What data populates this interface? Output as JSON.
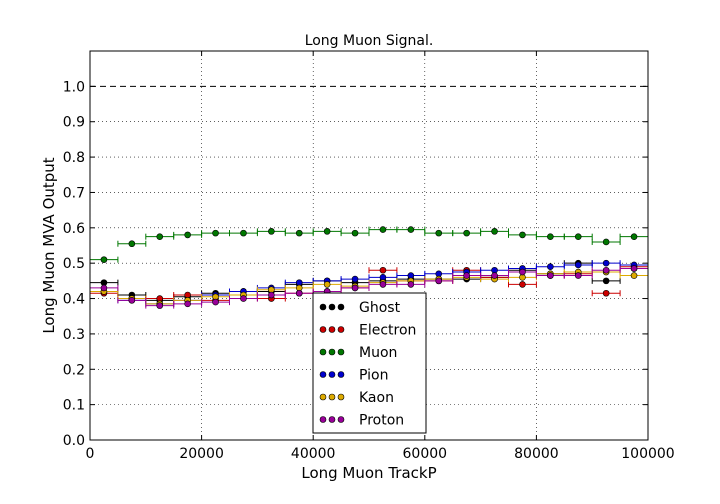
{
  "chart_data": {
    "type": "scatter",
    "title": "Long Muon Signal.",
    "xlabel": "Long Muon TrackP",
    "ylabel": "Long Muon MVA Output",
    "xlim": [
      0,
      100000
    ],
    "ylim": [
      0,
      1.1
    ],
    "xticks": [
      0,
      20000,
      40000,
      60000,
      80000,
      100000
    ],
    "xtick_labels": [
      "0",
      "20000",
      "40000",
      "60000",
      "80000",
      "100000"
    ],
    "yticks": [
      0,
      0.1,
      0.2,
      0.3,
      0.4,
      0.5,
      0.6,
      0.7,
      0.8,
      0.9,
      1.0
    ],
    "ytick_labels": [
      "0.0",
      "0.1",
      "0.2",
      "0.3",
      "0.4",
      "0.5",
      "0.6",
      "0.7",
      "0.8",
      "0.9",
      "1.0"
    ],
    "grid": true,
    "reference_line": 1.0,
    "legend_position": "lower-center",
    "bin_width": 5000,
    "x": [
      2500,
      7500,
      12500,
      17500,
      22500,
      27500,
      32500,
      37500,
      42500,
      47500,
      52500,
      57500,
      62500,
      67500,
      72500,
      77500,
      82500,
      87500,
      92500,
      97500
    ],
    "series": [
      {
        "name": "Ghost",
        "color": "#000000",
        "values": [
          0.445,
          0.41,
          0.395,
          0.405,
          0.415,
          0.42,
          0.42,
          0.44,
          0.45,
          0.445,
          0.45,
          0.455,
          0.455,
          0.455,
          0.46,
          0.48,
          0.47,
          0.5,
          0.45,
          0.485
        ]
      },
      {
        "name": "Electron",
        "color": "#cc0000",
        "values": [
          0.415,
          0.4,
          0.4,
          0.41,
          0.395,
          0.41,
          0.4,
          0.415,
          0.42,
          0.43,
          0.48,
          0.45,
          0.45,
          0.48,
          0.46,
          0.44,
          0.465,
          0.47,
          0.415,
          0.49
        ]
      },
      {
        "name": "Muon",
        "color": "#007700",
        "values": [
          0.51,
          0.555,
          0.575,
          0.58,
          0.585,
          0.585,
          0.59,
          0.585,
          0.59,
          0.585,
          0.595,
          0.595,
          0.585,
          0.585,
          0.59,
          0.58,
          0.575,
          0.575,
          0.56,
          0.575
        ]
      },
      {
        "name": "Pion",
        "color": "#0000cc",
        "values": [
          0.42,
          0.395,
          0.385,
          0.395,
          0.41,
          0.42,
          0.43,
          0.445,
          0.45,
          0.455,
          0.46,
          0.465,
          0.47,
          0.475,
          0.48,
          0.485,
          0.49,
          0.495,
          0.5,
          0.495
        ]
      },
      {
        "name": "Kaon",
        "color": "#ddaa00",
        "values": [
          0.42,
          0.4,
          0.385,
          0.395,
          0.405,
          0.41,
          0.425,
          0.43,
          0.44,
          0.435,
          0.445,
          0.45,
          0.455,
          0.46,
          0.455,
          0.46,
          0.47,
          0.475,
          0.475,
          0.465
        ]
      },
      {
        "name": "Proton",
        "color": "#990099",
        "values": [
          0.43,
          0.395,
          0.38,
          0.385,
          0.39,
          0.4,
          0.41,
          0.415,
          0.42,
          0.43,
          0.44,
          0.44,
          0.45,
          0.465,
          0.465,
          0.475,
          0.465,
          0.465,
          0.48,
          0.485
        ]
      }
    ]
  }
}
